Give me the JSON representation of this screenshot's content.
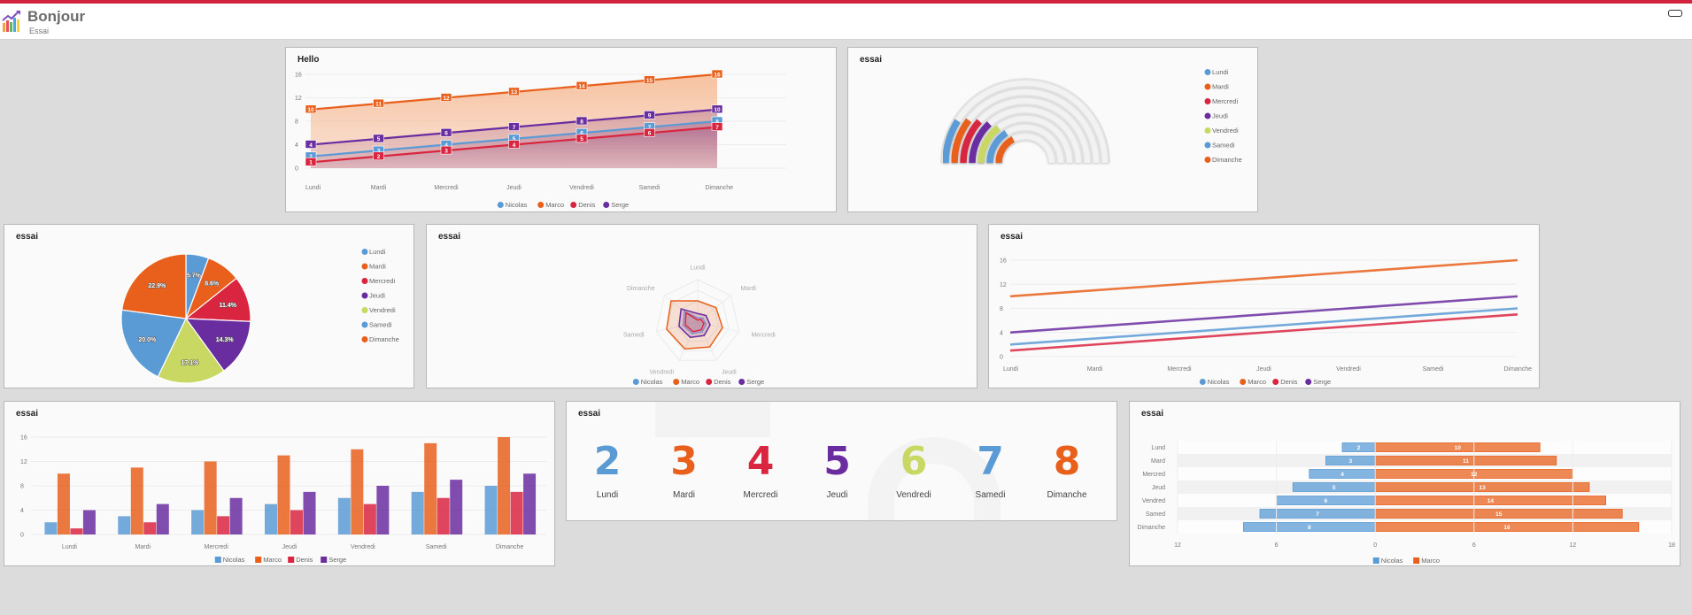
{
  "header": {
    "title": "Bonjour",
    "subtitle": "Essai",
    "brand_color": "#d1233d",
    "logo_icon": "chart-growth-icon",
    "menu_icon": "menu-toggle-icon"
  },
  "colors": {
    "Nicolas": "#5b9bd5",
    "Marco": "#e8601c",
    "Denis": "#d9253f",
    "Serge": "#6a2da0",
    "days": [
      "#5b9bd5",
      "#e8601c",
      "#d9253f",
      "#6a2da0",
      "#c8d862",
      "#5b9bd5",
      "#e8601c"
    ]
  },
  "panels": {
    "area": {
      "title": "Hello"
    },
    "radial": {
      "title": "essai"
    },
    "pie": {
      "title": "essai"
    },
    "radar": {
      "title": "essai"
    },
    "line": {
      "title": "essai"
    },
    "bar": {
      "title": "essai"
    },
    "numbers": {
      "title": "essai"
    },
    "pyramid": {
      "title": "essai"
    }
  },
  "numbers": {
    "items": [
      {
        "value": "2",
        "label": "Lundi"
      },
      {
        "value": "3",
        "label": "Mardi"
      },
      {
        "value": "4",
        "label": "Mercredi"
      },
      {
        "value": "5",
        "label": "Jeudi"
      },
      {
        "value": "6",
        "label": "Vendredi"
      },
      {
        "value": "7",
        "label": "Samedi"
      },
      {
        "value": "8",
        "label": "Dimanche"
      }
    ]
  },
  "chart_data": [
    {
      "id": "area",
      "type": "area",
      "title": "Hello",
      "categories": [
        "Lundi",
        "Mardi",
        "Mercredi",
        "Jeudi",
        "Vendredi",
        "Samedi",
        "Dimanche"
      ],
      "series": [
        {
          "name": "Nicolas",
          "values": [
            2,
            3,
            4,
            5,
            6,
            7,
            8
          ]
        },
        {
          "name": "Marco",
          "values": [
            10,
            11,
            12,
            13,
            14,
            15,
            16
          ]
        },
        {
          "name": "Denis",
          "values": [
            1,
            2,
            3,
            4,
            5,
            6,
            7
          ]
        },
        {
          "name": "Serge",
          "values": [
            4,
            5,
            6,
            7,
            8,
            9,
            10
          ]
        }
      ],
      "yticks": [
        0,
        4,
        8,
        12,
        16
      ],
      "ylim": [
        0,
        16
      ],
      "data_labels": true,
      "legend": "bottom"
    },
    {
      "id": "radial",
      "type": "radial-bar",
      "title": "essai",
      "categories": [
        "Lundi",
        "Mardi",
        "Mercredi",
        "Jeudi",
        "Vendredi",
        "Samedi",
        "Dimanche"
      ],
      "values": [
        2,
        3,
        4,
        5,
        6,
        7,
        8
      ],
      "max": 35,
      "legend": "right"
    },
    {
      "id": "pie",
      "type": "pie",
      "title": "essai",
      "categories": [
        "Lundi",
        "Mardi",
        "Mercredi",
        "Jeudi",
        "Vendredi",
        "Samedi",
        "Dimanche"
      ],
      "values": [
        2,
        3,
        4,
        5,
        6,
        7,
        8
      ],
      "labels": [
        "5.7%",
        "8.6%",
        "11.4%",
        "14.3%",
        "17.1%",
        "20.0%",
        "22.9%"
      ],
      "legend": "right"
    },
    {
      "id": "radar",
      "type": "radar",
      "title": "essai",
      "categories": [
        "Lundi",
        "Mardi",
        "Mercredi",
        "Jeudi",
        "Vendredi",
        "Samedi",
        "Dimanche"
      ],
      "series": [
        {
          "name": "Nicolas",
          "values": [
            2,
            3,
            4,
            5,
            6,
            7,
            8
          ]
        },
        {
          "name": "Marco",
          "values": [
            10,
            11,
            12,
            13,
            14,
            15,
            16
          ]
        },
        {
          "name": "Denis",
          "values": [
            1,
            2,
            3,
            4,
            5,
            6,
            7
          ]
        },
        {
          "name": "Serge",
          "values": [
            4,
            5,
            6,
            7,
            8,
            9,
            10
          ]
        }
      ],
      "max": 20,
      "legend": "bottom"
    },
    {
      "id": "line",
      "type": "line",
      "title": "essai",
      "categories": [
        "Lundi",
        "Mardi",
        "Mercredi",
        "Jeudi",
        "Vendredi",
        "Samedi",
        "Dimanche"
      ],
      "series": [
        {
          "name": "Nicolas",
          "values": [
            2,
            3,
            4,
            5,
            6,
            7,
            8
          ]
        },
        {
          "name": "Marco",
          "values": [
            10,
            11,
            12,
            13,
            14,
            15,
            16
          ]
        },
        {
          "name": "Denis",
          "values": [
            1,
            2,
            3,
            4,
            5,
            6,
            7
          ]
        },
        {
          "name": "Serge",
          "values": [
            4,
            5,
            6,
            7,
            8,
            9,
            10
          ]
        }
      ],
      "yticks": [
        0,
        4,
        8,
        12,
        16
      ],
      "ylim": [
        0,
        16
      ],
      "legend": "bottom"
    },
    {
      "id": "bar",
      "type": "bar",
      "title": "essai",
      "categories": [
        "Lundi",
        "Mardi",
        "Mercredi",
        "Jeudi",
        "Vendredi",
        "Samedi",
        "Dimanche"
      ],
      "series": [
        {
          "name": "Nicolas",
          "values": [
            2,
            3,
            4,
            5,
            6,
            7,
            8
          ]
        },
        {
          "name": "Marco",
          "values": [
            10,
            11,
            12,
            13,
            14,
            15,
            16
          ]
        },
        {
          "name": "Denis",
          "values": [
            1,
            2,
            3,
            4,
            5,
            6,
            7
          ]
        },
        {
          "name": "Serge",
          "values": [
            4,
            5,
            6,
            7,
            8,
            9,
            10
          ]
        }
      ],
      "yticks": [
        0,
        4,
        8,
        12,
        16
      ],
      "ylim": [
        0,
        16
      ],
      "legend": "bottom"
    },
    {
      "id": "pyramid",
      "type": "bar",
      "orientation": "horizontal-diverging",
      "title": "essai",
      "categories": [
        "Lundi",
        "Mardi",
        "Mercredi",
        "Jeudi",
        "Vendredi",
        "Samedi",
        "Dimanche"
      ],
      "category_labels": [
        "Lund",
        "Mard",
        "Mercred",
        "Jeud",
        "Vendred",
        "Samed",
        "Dimanche"
      ],
      "series": [
        {
          "name": "Nicolas",
          "values": [
            2,
            3,
            4,
            5,
            6,
            7,
            8
          ],
          "side": "left"
        },
        {
          "name": "Marco",
          "values": [
            10,
            11,
            12,
            13,
            14,
            15,
            16
          ],
          "side": "right"
        }
      ],
      "xticks": [
        "12",
        "6",
        "0",
        "6",
        "12",
        "18"
      ],
      "xlim": [
        -12,
        18
      ],
      "data_labels": true,
      "legend": "bottom"
    }
  ]
}
